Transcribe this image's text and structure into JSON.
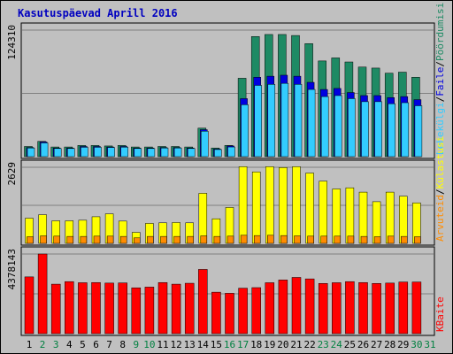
{
  "title": "Kasutuspäevad Aprill 2016",
  "colors": {
    "background": "#c0c0c0",
    "plot_bg": "#c0c0c0",
    "border": "#000000",
    "grid": "#808080",
    "title": "#0000c0",
    "visits": "#1e8a64",
    "pages": "#33ccff",
    "files": "#0000e0",
    "hits": "#2a6e70",
    "kbytes": "#ff0000",
    "unique": "#ffff00",
    "visitors": "#ff8c00",
    "weekend_label": "#008040",
    "weekday_label": "#000000"
  },
  "chart_data": [
    {
      "type": "bar",
      "panel": "top",
      "ymax_label": "124310",
      "ylim": [
        0,
        124310
      ],
      "legend": [
        "Pöördumisi",
        "/",
        "Faile",
        "/",
        "Lehekülgi"
      ],
      "series": [
        {
          "name": "Pöördumisi",
          "values": [
            10000,
            15000,
            9500,
            9500,
            11000,
            11000,
            10500,
            11000,
            9500,
            9500,
            10000,
            10000,
            9500,
            28000,
            8500,
            11000,
            77000,
            118000,
            120000,
            120000,
            119000,
            111000,
            94000,
            97000,
            93000,
            88000,
            87000,
            82000,
            83000,
            78000
          ]
        },
        {
          "name": "Faile",
          "values": [
            9000,
            14500,
            8500,
            8500,
            10000,
            10000,
            9500,
            10000,
            8500,
            8500,
            9000,
            9000,
            8500,
            26500,
            7500,
            10500,
            57000,
            78000,
            79000,
            80000,
            79000,
            73000,
            66000,
            67000,
            63000,
            60000,
            60000,
            58000,
            59000,
            56000
          ]
        },
        {
          "name": "Lehekülgi",
          "values": [
            8500,
            13500,
            8000,
            8000,
            9200,
            9200,
            9000,
            9300,
            8000,
            8000,
            8500,
            8500,
            8000,
            25000,
            7000,
            9500,
            51000,
            70000,
            71000,
            72000,
            71000,
            66000,
            59000,
            60000,
            57000,
            54000,
            54000,
            52000,
            53000,
            50000
          ]
        }
      ]
    },
    {
      "type": "bar",
      "panel": "middle",
      "ymax_label": "2629",
      "ylim": [
        0,
        2629
      ],
      "legend": [
        "Külastusi",
        "/",
        "Arvuteid"
      ],
      "series": [
        {
          "name": "Külastusi",
          "values": [
            870,
            990,
            780,
            780,
            800,
            920,
            1020,
            770,
            380,
            690,
            710,
            720,
            710,
            1730,
            850,
            1240,
            2650,
            2470,
            2650,
            2620,
            2650,
            2430,
            2150,
            1880,
            1920,
            1770,
            1440,
            1770,
            1630,
            1400
          ]
        },
        {
          "name": "Arvuteid",
          "values": [
            230,
            260,
            250,
            240,
            240,
            250,
            250,
            240,
            190,
            240,
            240,
            240,
            240,
            260,
            240,
            250,
            280,
            270,
            280,
            270,
            260,
            250,
            250,
            250,
            250,
            240,
            230,
            250,
            240,
            230
          ]
        }
      ]
    },
    {
      "type": "bar",
      "panel": "bottom",
      "ymax_label": "4378143",
      "ylim": [
        0,
        4378143
      ],
      "legend": [
        "KBaite"
      ],
      "series": [
        {
          "name": "KBaite",
          "values": [
            3120000,
            4378143,
            2720000,
            2860000,
            2800000,
            2810000,
            2780000,
            2790000,
            2520000,
            2560000,
            2810000,
            2720000,
            2770000,
            3530000,
            2280000,
            2220000,
            2500000,
            2530000,
            2800000,
            2950000,
            3090000,
            3010000,
            2760000,
            2800000,
            2860000,
            2810000,
            2760000,
            2780000,
            2840000,
            2840000
          ]
        }
      ]
    }
  ],
  "days": [
    {
      "label": "1",
      "weekend": false
    },
    {
      "label": "2",
      "weekend": true
    },
    {
      "label": "3",
      "weekend": true
    },
    {
      "label": "4",
      "weekend": false
    },
    {
      "label": "5",
      "weekend": false
    },
    {
      "label": "6",
      "weekend": false
    },
    {
      "label": "7",
      "weekend": false
    },
    {
      "label": "8",
      "weekend": false
    },
    {
      "label": "9",
      "weekend": true
    },
    {
      "label": "10",
      "weekend": true
    },
    {
      "label": "11",
      "weekend": false
    },
    {
      "label": "12",
      "weekend": false
    },
    {
      "label": "13",
      "weekend": false
    },
    {
      "label": "14",
      "weekend": false
    },
    {
      "label": "15",
      "weekend": false
    },
    {
      "label": "16",
      "weekend": true
    },
    {
      "label": "17",
      "weekend": true
    },
    {
      "label": "18",
      "weekend": false
    },
    {
      "label": "19",
      "weekend": false
    },
    {
      "label": "20",
      "weekend": false
    },
    {
      "label": "21",
      "weekend": false
    },
    {
      "label": "22",
      "weekend": false
    },
    {
      "label": "23",
      "weekend": true
    },
    {
      "label": "24",
      "weekend": true
    },
    {
      "label": "25",
      "weekend": false
    },
    {
      "label": "26",
      "weekend": false
    },
    {
      "label": "27",
      "weekend": false
    },
    {
      "label": "28",
      "weekend": false
    },
    {
      "label": "29",
      "weekend": false
    },
    {
      "label": "30",
      "weekend": true
    },
    {
      "label": "31",
      "weekend": true
    }
  ]
}
